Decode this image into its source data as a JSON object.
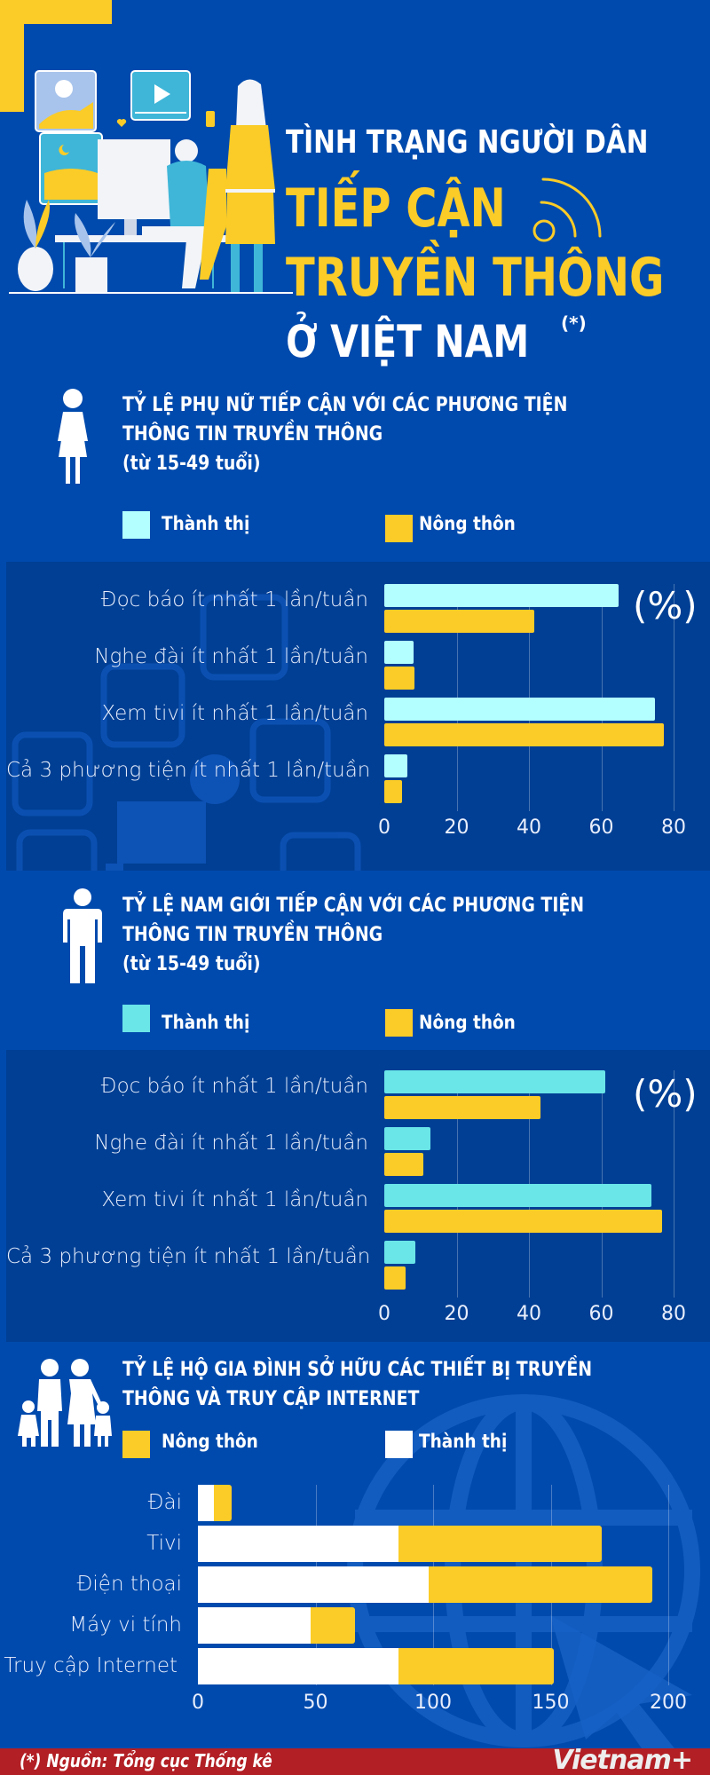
{
  "header": {
    "line1": "TÌNH TRẠNG NGƯỜI DÂN",
    "line2": "TIẾP CẬN",
    "line3": "TRUYỀN THÔNG",
    "line4": "Ở VIỆT NAM",
    "footnote_mark": "(*)"
  },
  "colors": {
    "background": "#004aad",
    "panel": "#003f94",
    "yellow": "#fbcc27",
    "cyan_women": "#b3ffff",
    "cyan_men": "#6ae5e8",
    "white": "#ffffff",
    "footer": "#b21f24"
  },
  "women": {
    "title_line1": "TỶ LỆ PHỤ NỮ TIẾP CẬN VỚI CÁC PHƯƠNG TIỆN",
    "title_line2": "THÔNG TIN TRUYỀN THÔNG",
    "title_line3": "(từ 15-49 tuổi)",
    "legend_urban": "Thành thị",
    "legend_rural": "Nông thôn",
    "unit": "(%)",
    "icon": "woman-icon"
  },
  "men": {
    "title_line1": "TỶ LỆ NAM GIỚI TIẾP CẬN VỚI CÁC PHƯƠNG TIỆN",
    "title_line2": "THÔNG TIN TRUYỀN THÔNG",
    "title_line3": "(từ 15-49 tuổi)",
    "legend_urban": "Thành thị",
    "legend_rural": "Nông thôn",
    "unit": "(%)",
    "icon": "man-icon"
  },
  "household": {
    "title_line1": "TỶ LỆ HỘ GIA ĐÌNH SỞ HỮU CÁC THIẾT BỊ TRUYỀN",
    "title_line2": "THÔNG VÀ TRUY CẬP INTERNET",
    "legend_rural": "Nông thôn",
    "legend_urban": "Thành thị",
    "icon": "family-icon"
  },
  "footer": {
    "source": "(*) Nguồn: Tổng cục Thống kê",
    "logo": "Vietnam+"
  },
  "chart_data": [
    {
      "type": "bar",
      "orientation": "horizontal",
      "title": "TỶ LỆ PHỤ NỮ TIẾP CẬN VỚI CÁC PHƯƠNG TIỆN THÔNG TIN TRUYỀN THÔNG (từ 15-49 tuổi)",
      "unit": "(%)",
      "categories": [
        "Đọc báo ít nhất 1 lần/tuần",
        "Nghe đài ít nhất 1 lần/tuần",
        "Xem tivi ít nhất 1 lần/tuần",
        "Cả 3 phương tiện ít nhất 1 lần/tuần"
      ],
      "series": [
        {
          "name": "Thành thị",
          "color": "#b3ffff",
          "values": [
            64.7,
            8.0,
            74.9,
            6.3
          ]
        },
        {
          "name": "Nông thôn",
          "color": "#fbcc27",
          "values": [
            41.4,
            8.3,
            77.2,
            5.0
          ]
        }
      ],
      "xticks": [
        0,
        20,
        40,
        60,
        80
      ],
      "xlim": [
        0,
        80
      ],
      "grid": true,
      "legend_position": "top"
    },
    {
      "type": "bar",
      "orientation": "horizontal",
      "title": "TỶ LỆ NAM GIỚI TIẾP CẬN VỚI CÁC PHƯƠNG TIỆN THÔNG TIN TRUYỀN THÔNG (từ 15-49 tuổi)",
      "unit": "(%)",
      "categories": [
        "Đọc báo ít nhất 1 lần/tuần",
        "Nghe đài ít nhất 1 lần/tuần",
        "Xem tivi ít nhất 1 lần/tuần",
        "Cả 3 phương tiện ít nhất 1 lần/tuần"
      ],
      "series": [
        {
          "name": "Thành thị",
          "color": "#6ae5e8",
          "values": [
            61.1,
            12.7,
            73.9,
            8.7
          ]
        },
        {
          "name": "Nông thôn",
          "color": "#fbcc27",
          "values": [
            43.1,
            10.7,
            76.7,
            5.8
          ]
        }
      ],
      "xticks": [
        0,
        20,
        40,
        60,
        80
      ],
      "xlim": [
        0,
        80
      ],
      "grid": true,
      "legend_position": "top"
    },
    {
      "type": "bar",
      "orientation": "horizontal",
      "stacked": true,
      "title": "TỶ LỆ HỘ GIA ĐÌNH SỞ HỮU CÁC THIẾT BỊ TRUYỀN THÔNG VÀ TRUY CẬP INTERNET",
      "categories": [
        "Đài",
        "Tivi",
        "Điện thoại",
        "Máy vi tính",
        "Truy cập Internet"
      ],
      "series": [
        {
          "name": "Thành thị",
          "color": "#ffffff",
          "values": [
            6.8,
            85.1,
            98.0,
            47.9,
            85.1
          ]
        },
        {
          "name": "Nông thôn",
          "color": "#fbcc27",
          "values": [
            7.4,
            86.6,
            95.3,
            18.9,
            66.3
          ]
        }
      ],
      "xticks": [
        0,
        50,
        100,
        150,
        200
      ],
      "xlim": [
        0,
        200
      ],
      "grid": true,
      "legend_position": "top"
    }
  ]
}
